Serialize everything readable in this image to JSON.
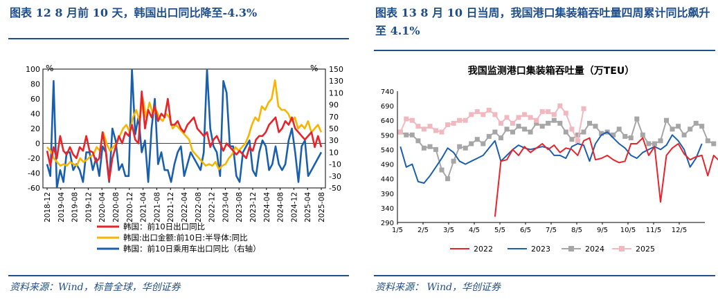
{
  "left": {
    "figure_title": "图表 12   8 月前 10 天，韩国出口同比降至-4.3%",
    "source": "资料来源：Wind，标普全球，华创证券",
    "chart_data": {
      "type": "line",
      "y_left_unit": "%",
      "y_right_unit": "%",
      "ylim_left": [
        -60,
        100
      ],
      "ylim_right": [
        -50,
        150
      ],
      "yticks_left": [
        100,
        80,
        60,
        40,
        20,
        0,
        -20,
        -40,
        -60
      ],
      "yticks_right": [
        150,
        130,
        110,
        90,
        70,
        50,
        30,
        10,
        -10,
        -30,
        -50
      ],
      "x_tick_labels": [
        "2018-12",
        "2019-04",
        "2019-08",
        "2019-12",
        "2020-04",
        "2020-08",
        "2020-12",
        "2021-04",
        "2021-08",
        "2021-12",
        "2022-04",
        "2022-08",
        "2022-12",
        "2023-04",
        "2023-08",
        "2023-12",
        "2024-04",
        "2024-08",
        "2024-12",
        "2025-04",
        "2025-08"
      ],
      "x_start": "2018-12",
      "colors": [
        "#e8232a",
        "#f7b500",
        "#1a5fad"
      ],
      "legend": [
        "韩国：前10日出口同比",
        "韩国:出口金额:前10日:半导体:同比",
        "韩国：前10日乘用车出口同比（右轴）"
      ],
      "series": [
        {
          "axis": "left",
          "values": [
            -10,
            -30,
            -5,
            -20,
            10,
            -10,
            -15,
            -5,
            -15,
            -20,
            -5,
            -10,
            10,
            -10,
            -12,
            -25,
            -20,
            15,
            -10,
            -50,
            -20,
            -5,
            10,
            0,
            15,
            10,
            25,
            5,
            0,
            70,
            20,
            45,
            35,
            50,
            30,
            40,
            35,
            60,
            25,
            25,
            30,
            20,
            15,
            25,
            30,
            35,
            20,
            15,
            10,
            15,
            -5,
            5,
            10,
            0,
            -10,
            0,
            -5,
            -10,
            -15,
            -10,
            -15,
            -20,
            -5,
            -10,
            5,
            10,
            10,
            15,
            25,
            30,
            35,
            15,
            20,
            30,
            25,
            35,
            20,
            15,
            10,
            5,
            10,
            15,
            -5,
            10,
            -5
          ]
        },
        {
          "axis": "left",
          "values": [
            -5,
            -10,
            -20,
            -25,
            -30,
            -28,
            -30,
            -25,
            -28,
            -30,
            -20,
            -25,
            -22,
            -18,
            -15,
            -5,
            -10,
            15,
            0,
            -10,
            -5,
            0,
            10,
            20,
            25,
            15,
            35,
            45,
            30,
            60,
            35,
            55,
            40,
            45,
            35,
            30,
            40,
            35,
            20,
            25,
            20,
            15,
            10,
            5,
            -10,
            -15,
            -20,
            -25,
            -30,
            -28,
            -30,
            -25,
            -35,
            -30,
            -28,
            -20,
            -15,
            -5,
            -10,
            -5,
            0,
            10,
            25,
            35,
            30,
            50,
            45,
            55,
            60,
            85,
            50,
            45,
            45,
            40,
            30,
            35,
            20,
            25,
            20,
            30,
            15,
            20,
            25,
            15
          ]
        },
        {
          "axis": "right",
          "values": [
            -10,
            -30,
            130,
            -50,
            -20,
            -40,
            10,
            10,
            -20,
            -10,
            -20,
            -40,
            10,
            10,
            -20,
            0,
            -30,
            20,
            10,
            -40,
            50,
            30,
            -20,
            -10,
            -30,
            -30,
            150,
            40,
            70,
            10,
            30,
            -40,
            50,
            100,
            -10,
            10,
            -20,
            -20,
            -40,
            -10,
            10,
            20,
            -30,
            -10,
            10,
            0,
            -10,
            -20,
            10,
            150,
            50,
            20,
            10,
            -30,
            130,
            110,
            20,
            20,
            -30,
            -40,
            10,
            20,
            30,
            -20,
            -30,
            10,
            30,
            20,
            -20,
            -10,
            20,
            -10,
            -20,
            -10,
            30,
            50,
            10,
            -40,
            20,
            30,
            -30,
            -20,
            -10,
            0,
            10
          ]
        }
      ]
    }
  },
  "right": {
    "figure_title": "图表 13   8 月 10 日当周，我国港口集装箱吞吐量四周累计同比飙升至 4.1%",
    "source": "资料来源：  Wind，华创证券",
    "chart_data": {
      "type": "line",
      "title": "我国监测港口集装箱吞吐量（万TEU）",
      "ylim": [
        290,
        740
      ],
      "yticks": [
        740,
        690,
        640,
        590,
        540,
        490,
        440,
        390,
        340,
        290
      ],
      "x_tick_labels": [
        "1/5",
        "2/5",
        "3/5",
        "4/5",
        "5/5",
        "6/5",
        "7/5",
        "8/5",
        "9/5",
        "10/5",
        "11/5",
        "12/5"
      ],
      "legend": [
        "2022",
        "2023",
        "2024",
        "2025"
      ],
      "colors": [
        "#e8232a",
        "#1a5fad",
        "#a6a6a6",
        "#f2b8bf"
      ],
      "series": [
        {
          "name": "2022",
          "start_week": 16,
          "values": [
            310,
            500,
            505,
            540,
            520,
            550,
            530,
            545,
            560,
            540,
            555,
            530,
            545,
            540,
            520,
            570,
            580,
            505,
            510,
            520,
            505,
            495,
            500,
            560,
            560,
            580,
            520,
            550,
            360,
            520,
            545,
            560,
            525,
            505,
            515,
            520,
            450,
            520,
            500,
            520,
            480,
            470
          ]
        },
        {
          "name": "2023",
          "start_week": 0,
          "values": [
            550,
            480,
            490,
            430,
            425,
            450,
            480,
            510,
            545,
            530,
            500,
            490,
            500,
            510,
            520,
            545,
            570,
            500,
            520,
            540,
            555,
            545,
            540,
            545,
            550,
            545,
            520,
            520,
            510,
            550,
            560,
            555,
            500,
            560,
            590,
            600,
            580,
            560,
            545,
            520,
            510,
            530,
            540,
            550,
            540,
            555,
            590,
            570,
            540,
            480,
            510,
            560
          ]
        },
        {
          "name": "2024",
          "start_week": 0,
          "values": [
            600,
            590,
            590,
            570,
            545,
            550,
            540,
            470,
            440,
            500,
            550,
            545,
            560,
            575,
            560,
            585,
            600,
            580,
            610,
            600,
            620,
            610,
            600,
            630,
            620,
            630,
            640,
            630,
            600,
            575,
            590,
            600,
            630,
            620,
            595,
            600,
            590,
            610,
            585,
            580,
            645,
            590,
            560,
            560,
            570,
            640,
            610,
            620,
            590,
            610,
            630,
            620,
            570,
            560
          ]
        },
        {
          "name": "2025",
          "start_week": 0,
          "values": [
            600,
            645,
            640,
            620,
            610,
            620,
            605,
            600,
            625,
            630,
            640,
            640,
            660,
            670,
            660,
            675,
            660,
            630,
            650,
            630,
            650,
            660,
            650,
            640,
            670,
            670,
            660,
            690,
            665,
            610,
            570,
            680
          ]
        }
      ]
    }
  }
}
